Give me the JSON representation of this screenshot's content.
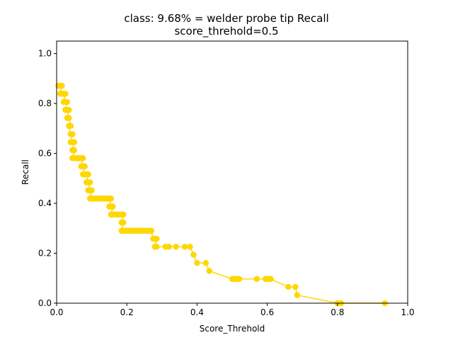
{
  "chart_data": {
    "type": "line",
    "title": "class: 9.68% = welder probe tip Recall",
    "subtitle": "score_threhold=0.5",
    "xlabel": "Score_Threhold",
    "ylabel": "Recall",
    "xlim": [
      0.0,
      1.0
    ],
    "ylim": [
      0.0,
      1.05
    ],
    "xticks": [
      "0.0",
      "0.2",
      "0.4",
      "0.6",
      "0.8",
      "1.0"
    ],
    "yticks": [
      "0.0",
      "0.2",
      "0.4",
      "0.6",
      "0.8",
      "1.0"
    ],
    "grid": false,
    "series": [
      {
        "color": "#ffd700",
        "marker": "circle",
        "x": [
          0.005,
          0.01,
          0.015,
          0.01,
          0.015,
          0.02,
          0.025,
          0.02,
          0.025,
          0.03,
          0.025,
          0.03,
          0.035,
          0.03,
          0.035,
          0.04,
          0.035,
          0.04,
          0.045,
          0.04,
          0.045,
          0.05,
          0.045,
          0.05,
          0.045,
          0.05,
          0.055,
          0.06,
          0.065,
          0.07,
          0.075,
          0.07,
          0.075,
          0.08,
          0.075,
          0.08,
          0.085,
          0.09,
          0.085,
          0.09,
          0.095,
          0.09,
          0.095,
          0.1,
          0.095,
          0.1,
          0.105,
          0.11,
          0.115,
          0.12,
          0.125,
          0.13,
          0.135,
          0.14,
          0.145,
          0.15,
          0.155,
          0.15,
          0.155,
          0.16,
          0.155,
          0.16,
          0.165,
          0.17,
          0.175,
          0.18,
          0.185,
          0.19,
          0.185,
          0.19,
          0.185,
          0.19,
          0.195,
          0.2,
          0.205,
          0.21,
          0.215,
          0.22,
          0.225,
          0.23,
          0.235,
          0.24,
          0.245,
          0.25,
          0.255,
          0.26,
          0.265,
          0.27,
          0.275,
          0.28,
          0.285,
          0.28,
          0.285,
          0.31,
          0.32,
          0.34,
          0.365,
          0.38,
          0.39,
          0.4,
          0.425,
          0.435,
          0.5,
          0.505,
          0.51,
          0.515,
          0.52,
          0.57,
          0.595,
          0.6,
          0.605,
          0.61,
          0.66,
          0.68,
          0.685,
          0.8,
          0.81,
          0.935
        ],
        "y": [
          0.871,
          0.871,
          0.871,
          0.839,
          0.839,
          0.839,
          0.839,
          0.806,
          0.806,
          0.806,
          0.774,
          0.774,
          0.774,
          0.742,
          0.742,
          0.71,
          0.71,
          0.677,
          0.677,
          0.645,
          0.645,
          0.645,
          0.613,
          0.613,
          0.581,
          0.581,
          0.581,
          0.581,
          0.581,
          0.581,
          0.581,
          0.548,
          0.548,
          0.548,
          0.516,
          0.516,
          0.516,
          0.516,
          0.484,
          0.484,
          0.484,
          0.452,
          0.452,
          0.452,
          0.419,
          0.419,
          0.419,
          0.419,
          0.419,
          0.419,
          0.419,
          0.419,
          0.419,
          0.419,
          0.419,
          0.419,
          0.419,
          0.387,
          0.387,
          0.387,
          0.355,
          0.355,
          0.355,
          0.355,
          0.355,
          0.355,
          0.355,
          0.355,
          0.323,
          0.323,
          0.29,
          0.29,
          0.29,
          0.29,
          0.29,
          0.29,
          0.29,
          0.29,
          0.29,
          0.29,
          0.29,
          0.29,
          0.29,
          0.29,
          0.29,
          0.29,
          0.29,
          0.29,
          0.258,
          0.258,
          0.258,
          0.226,
          0.226,
          0.226,
          0.226,
          0.226,
          0.226,
          0.226,
          0.194,
          0.161,
          0.161,
          0.129,
          0.097,
          0.097,
          0.097,
          0.097,
          0.097,
          0.097,
          0.097,
          0.097,
          0.097,
          0.097,
          0.065,
          0.065,
          0.032,
          0.0,
          0.0,
          0.0
        ]
      }
    ]
  }
}
